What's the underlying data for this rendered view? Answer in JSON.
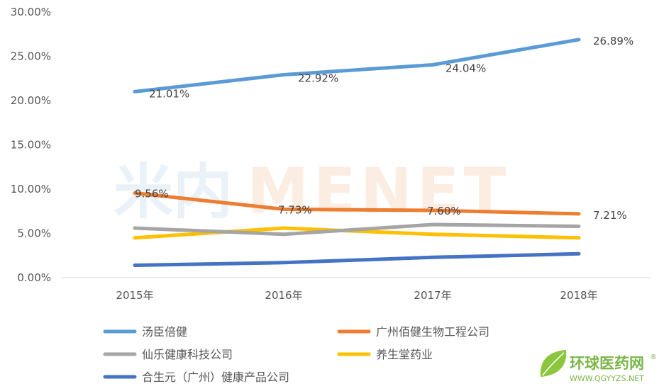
{
  "watermark": {
    "cn": "米内",
    "en": "MENET"
  },
  "logo": {
    "name": "环球医药网",
    "reg": "®",
    "url": "WWW.QGYYZS.NET"
  },
  "chart_data": {
    "type": "line",
    "categories": [
      "2015年",
      "2016年",
      "2017年",
      "2018年"
    ],
    "ylim": [
      0,
      30
    ],
    "yticks": [
      "0.00%",
      "5.00%",
      "10.00%",
      "15.00%",
      "20.00%",
      "25.00%",
      "30.00%"
    ],
    "grid": false,
    "legend": "bottom",
    "series": [
      {
        "name": "汤臣倍健",
        "color": "#5b9bd5",
        "values": [
          21.01,
          22.92,
          24.04,
          26.89
        ],
        "labels": [
          "21.01%",
          "22.92%",
          "24.04%",
          "26.89%"
        ]
      },
      {
        "name": "广州佰健生物工程公司",
        "color": "#ed7d31",
        "values": [
          9.56,
          7.73,
          7.6,
          7.21
        ],
        "labels": [
          "9.56%",
          "7.73%",
          "7.60%",
          "7.21%"
        ]
      },
      {
        "name": "仙乐健康科技公司",
        "color": "#a5a5a5",
        "values": [
          5.6,
          4.9,
          6.0,
          5.8
        ],
        "labels": []
      },
      {
        "name": "养生堂药业",
        "color": "#ffc000",
        "values": [
          4.5,
          5.6,
          4.9,
          4.5
        ],
        "labels": []
      },
      {
        "name": "合生元（广州）健康产品公司",
        "color": "#4472c4",
        "values": [
          1.4,
          1.7,
          2.3,
          2.7
        ],
        "labels": []
      }
    ]
  }
}
